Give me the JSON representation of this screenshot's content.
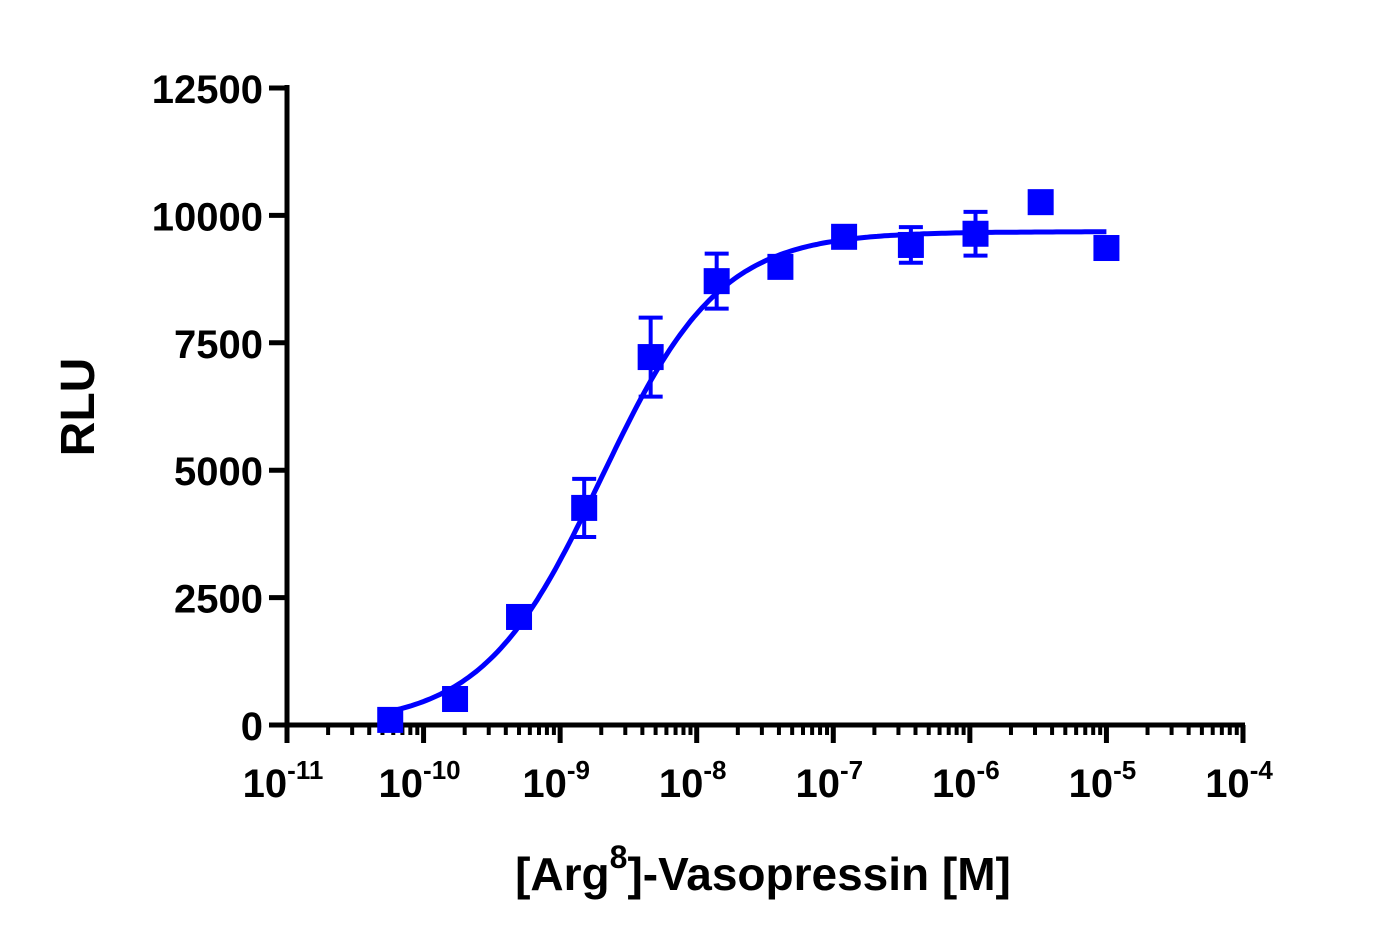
{
  "chart_data": {
    "type": "scatter",
    "xlabel_parts": [
      "[Arg",
      "8",
      "]-Vasopressin [M]"
    ],
    "ylabel": "RLU",
    "x_scale": "log",
    "xlim": [
      1e-11,
      0.0001
    ],
    "ylim": [
      0,
      12500
    ],
    "y_ticks": [
      0,
      2500,
      5000,
      7500,
      10000,
      12500
    ],
    "y_tick_labels": [
      "0",
      "2500",
      "5000",
      "7500",
      "10000",
      "12500"
    ],
    "x_ticks": [
      {
        "base": "10",
        "exp": "-11"
      },
      {
        "base": "10",
        "exp": "-10"
      },
      {
        "base": "10",
        "exp": "-9"
      },
      {
        "base": "10",
        "exp": "-8"
      },
      {
        "base": "10",
        "exp": "-7"
      },
      {
        "base": "10",
        "exp": "-6"
      },
      {
        "base": "10",
        "exp": "-5"
      },
      {
        "base": "10",
        "exp": "-4"
      }
    ],
    "grid": false,
    "color": "#0000ff",
    "marker": "square",
    "points": [
      {
        "x": 5.7e-11,
        "y": 100,
        "err": 0
      },
      {
        "x": 1.7e-10,
        "y": 510,
        "err": 0
      },
      {
        "x": 5e-10,
        "y": 2120,
        "err": 0
      },
      {
        "x": 1.5e-09,
        "y": 4260,
        "err": 570
      },
      {
        "x": 4.6e-09,
        "y": 7220,
        "err": 775
      },
      {
        "x": 1.4e-08,
        "y": 8710,
        "err": 540
      },
      {
        "x": 4.1e-08,
        "y": 8990,
        "err": 0
      },
      {
        "x": 1.2e-07,
        "y": 9580,
        "err": 0
      },
      {
        "x": 3.7e-07,
        "y": 9420,
        "err": 350
      },
      {
        "x": 1.1e-06,
        "y": 9640,
        "err": 430
      },
      {
        "x": 3.3e-06,
        "y": 10260,
        "err": 0
      },
      {
        "x": 1e-05,
        "y": 9360,
        "err": 0
      }
    ],
    "fit": {
      "model": "sigmoidal dose-response",
      "bottom": 0,
      "top": 9680,
      "logEC50": -8.7,
      "hill": 1.0,
      "x_range": [
        5.7e-11,
        1e-05
      ]
    }
  }
}
